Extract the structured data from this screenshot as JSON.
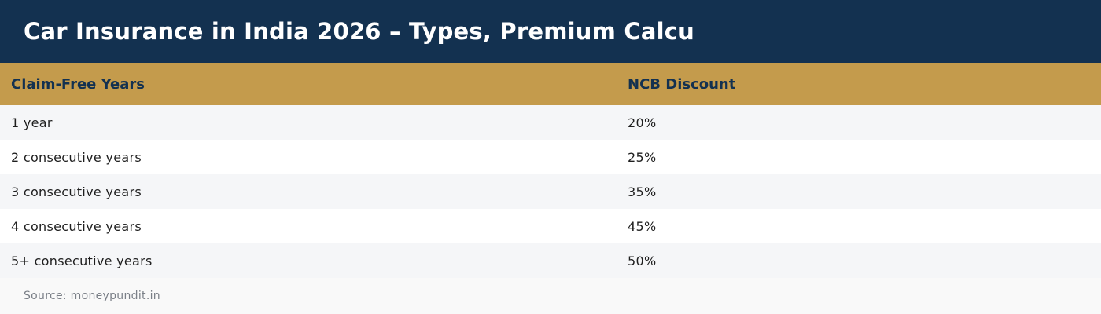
{
  "header": {
    "title": "Car Insurance in India 2026 – Types, Premium Calcu"
  },
  "table": {
    "columns": [
      "Claim-Free Years",
      "NCB Discount"
    ],
    "rows": [
      [
        "1 year",
        "20%"
      ],
      [
        "2 consecutive years",
        "25%"
      ],
      [
        "3 consecutive years",
        "35%"
      ],
      [
        "4 consecutive years",
        "45%"
      ],
      [
        "5+ consecutive years",
        "50%"
      ]
    ]
  },
  "footer": {
    "source": "Source: moneypundit.in"
  },
  "colors": {
    "title_bg": "#133150",
    "header_bg": "#c49b4c",
    "header_text": "#133150",
    "row_alt": "#f5f6f8"
  }
}
